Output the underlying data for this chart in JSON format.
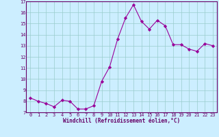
{
  "x": [
    0,
    1,
    2,
    3,
    4,
    5,
    6,
    7,
    8,
    9,
    10,
    11,
    12,
    13,
    14,
    15,
    16,
    17,
    18,
    19,
    20,
    21,
    22,
    23
  ],
  "y": [
    8.3,
    8.0,
    7.8,
    7.5,
    8.1,
    8.0,
    7.3,
    7.3,
    7.6,
    9.8,
    11.1,
    13.6,
    15.5,
    16.7,
    15.2,
    14.5,
    15.3,
    14.8,
    13.1,
    13.1,
    12.7,
    12.5,
    13.2,
    13.0
  ],
  "line_color": "#990099",
  "marker": "D",
  "marker_size": 2.2,
  "bg_color": "#cceeff",
  "grid_color": "#99cccc",
  "xlabel": "Windchill (Refroidissement éolien,°C)",
  "xlim": [
    -0.5,
    23.5
  ],
  "ylim": [
    7,
    17
  ],
  "yticks": [
    7,
    8,
    9,
    10,
    11,
    12,
    13,
    14,
    15,
    16,
    17
  ],
  "xticks": [
    0,
    1,
    2,
    3,
    4,
    5,
    6,
    7,
    8,
    9,
    10,
    11,
    12,
    13,
    14,
    15,
    16,
    17,
    18,
    19,
    20,
    21,
    22,
    23
  ],
  "axis_color": "#660066",
  "tick_color": "#660066",
  "label_color": "#660066",
  "spine_color": "#660066",
  "tick_fontsize": 5.0,
  "xlabel_fontsize": 5.5
}
